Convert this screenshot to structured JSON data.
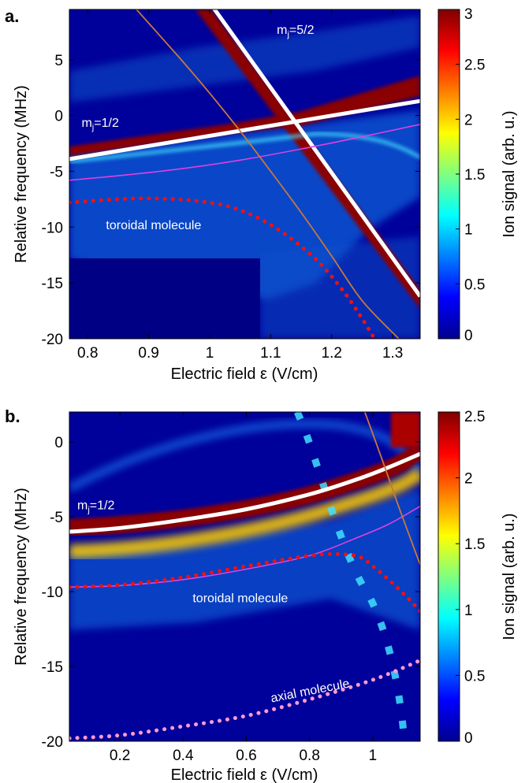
{
  "chart_data": [
    {
      "type": "heatmap",
      "panel_label": "a.",
      "xlabel": "Electric field ε (V/cm)",
      "ylabel": "Relative frequency (MHz)",
      "colorbar_label": "Ion signal (arb. u.)",
      "xlim": [
        0.77,
        1.345
      ],
      "ylim": [
        -20,
        9.5
      ],
      "xticks": [
        0.8,
        0.9,
        1.0,
        1.1,
        1.2,
        1.3
      ],
      "xtick_labels": [
        "0.8",
        "0.9",
        "1",
        "1.1",
        "1.2",
        "1.3"
      ],
      "yticks": [
        5,
        0,
        -5,
        -10,
        -15,
        -20
      ],
      "ytick_labels": [
        "5",
        "0",
        "-5",
        "-10",
        "-15",
        "-20"
      ],
      "clim": [
        0,
        3
      ],
      "colorbar_ticks": [
        0,
        0.5,
        1,
        1.5,
        2,
        2.5,
        3
      ],
      "colorbar_tick_labels": [
        "0",
        "0.5",
        "1",
        "1.5",
        "2",
        "2.5",
        "3"
      ],
      "annotations": [
        {
          "main": "m",
          "sub": "j",
          "tail": "=5/2",
          "x": 1.11,
          "y": 7.3
        },
        {
          "main": "m",
          "sub": "j",
          "tail": "=1/2",
          "x": 0.79,
          "y": -1.0
        },
        {
          "main": "toroidal molecule",
          "sub": "",
          "tail": "",
          "x": 0.83,
          "y": -10.2
        }
      ],
      "series": [
        {
          "style": "white-thick",
          "x": [
            0.77,
            1.345
          ],
          "y": [
            -3.9,
            1.3
          ]
        },
        {
          "style": "white-thick",
          "x": [
            0.995,
            1.345
          ],
          "y": [
            10.5,
            -16.2
          ]
        },
        {
          "style": "magenta",
          "x": [
            0.77,
            0.85,
            0.95,
            1.05,
            1.15,
            1.25,
            1.345
          ],
          "y": [
            -5.8,
            -5.4,
            -4.8,
            -4.0,
            -3.0,
            -1.9,
            -0.8
          ]
        },
        {
          "style": "orange",
          "x": [
            0.88,
            0.95,
            1.0,
            1.05,
            1.1,
            1.15,
            1.2,
            1.25,
            1.31
          ],
          "y": [
            9.5,
            5.2,
            2.0,
            -1.4,
            -5.0,
            -8.7,
            -12.6,
            -16.6,
            -20
          ]
        },
        {
          "style": "red-dotted",
          "x": [
            0.77,
            0.82,
            0.87,
            0.92,
            0.97,
            1.02,
            1.06,
            1.1,
            1.14,
            1.18,
            1.22,
            1.25,
            1.27
          ],
          "y": [
            -7.8,
            -7.6,
            -7.45,
            -7.45,
            -7.6,
            -8.0,
            -8.7,
            -9.8,
            -11.3,
            -13.2,
            -15.8,
            -18.2,
            -20
          ]
        }
      ]
    },
    {
      "type": "heatmap",
      "panel_label": "b.",
      "xlabel": "Electric field ε (V/cm)",
      "ylabel": "Relative frequency (MHz)",
      "colorbar_label": "Ion signal (arb. u.)",
      "xlim": [
        0.04,
        1.15
      ],
      "ylim": [
        -20,
        2
      ],
      "xticks": [
        0.2,
        0.4,
        0.6,
        0.8,
        1.0
      ],
      "xtick_labels": [
        "0.2",
        "0.4",
        "0.6",
        "0.8",
        "1"
      ],
      "yticks": [
        0,
        -5,
        -10,
        -15,
        -20
      ],
      "ytick_labels": [
        "0",
        "-5",
        "-10",
        "-15",
        "-20"
      ],
      "clim": [
        0,
        2.5
      ],
      "colorbar_ticks": [
        0,
        0.5,
        1,
        1.5,
        2,
        2.5
      ],
      "colorbar_tick_labels": [
        "0",
        "0.5",
        "1",
        "1.5",
        "2",
        "2.5"
      ],
      "annotations": [
        {
          "main": "m",
          "sub": "j",
          "tail": "=1/2",
          "x": 0.065,
          "y": -4.5
        },
        {
          "main": "toroidal molecule",
          "sub": "",
          "tail": "",
          "x": 0.43,
          "y": -10.7
        },
        {
          "main": "axial molecule",
          "sub": "",
          "tail": "",
          "x": 0.68,
          "y": -17.4,
          "rotate": -11
        }
      ],
      "series": [
        {
          "style": "white-thick",
          "x": [
            0.04,
            0.2,
            0.4,
            0.6,
            0.8,
            0.95,
            1.05,
            1.15
          ],
          "y": [
            -6.0,
            -5.75,
            -5.2,
            -4.5,
            -3.5,
            -2.5,
            -1.7,
            -0.8
          ]
        },
        {
          "style": "magenta",
          "x": [
            0.04,
            0.2,
            0.4,
            0.6,
            0.8,
            0.95,
            1.05,
            1.15
          ],
          "y": [
            -9.7,
            -9.6,
            -9.2,
            -8.5,
            -7.6,
            -6.4,
            -5.5,
            -4.3
          ]
        },
        {
          "style": "orange",
          "x": [
            0.975,
            1.03,
            1.08,
            1.12,
            1.15
          ],
          "y": [
            2,
            -1.2,
            -4.2,
            -6.5,
            -8.2
          ]
        },
        {
          "style": "red-dotted",
          "x": [
            0.04,
            0.2,
            0.4,
            0.6,
            0.8,
            0.9,
            0.96,
            1.0,
            1.05,
            1.1,
            1.15
          ],
          "y": [
            -9.7,
            -9.55,
            -9.05,
            -8.3,
            -7.6,
            -7.5,
            -7.7,
            -8.3,
            -9.2,
            -10.2,
            -11.3
          ]
        },
        {
          "style": "pink-dotted",
          "x": [
            0.04,
            0.2,
            0.4,
            0.6,
            0.8,
            1.0,
            1.15
          ],
          "y": [
            -19.8,
            -19.6,
            -19.0,
            -18.3,
            -17.2,
            -15.9,
            -14.6
          ]
        }
      ]
    }
  ]
}
